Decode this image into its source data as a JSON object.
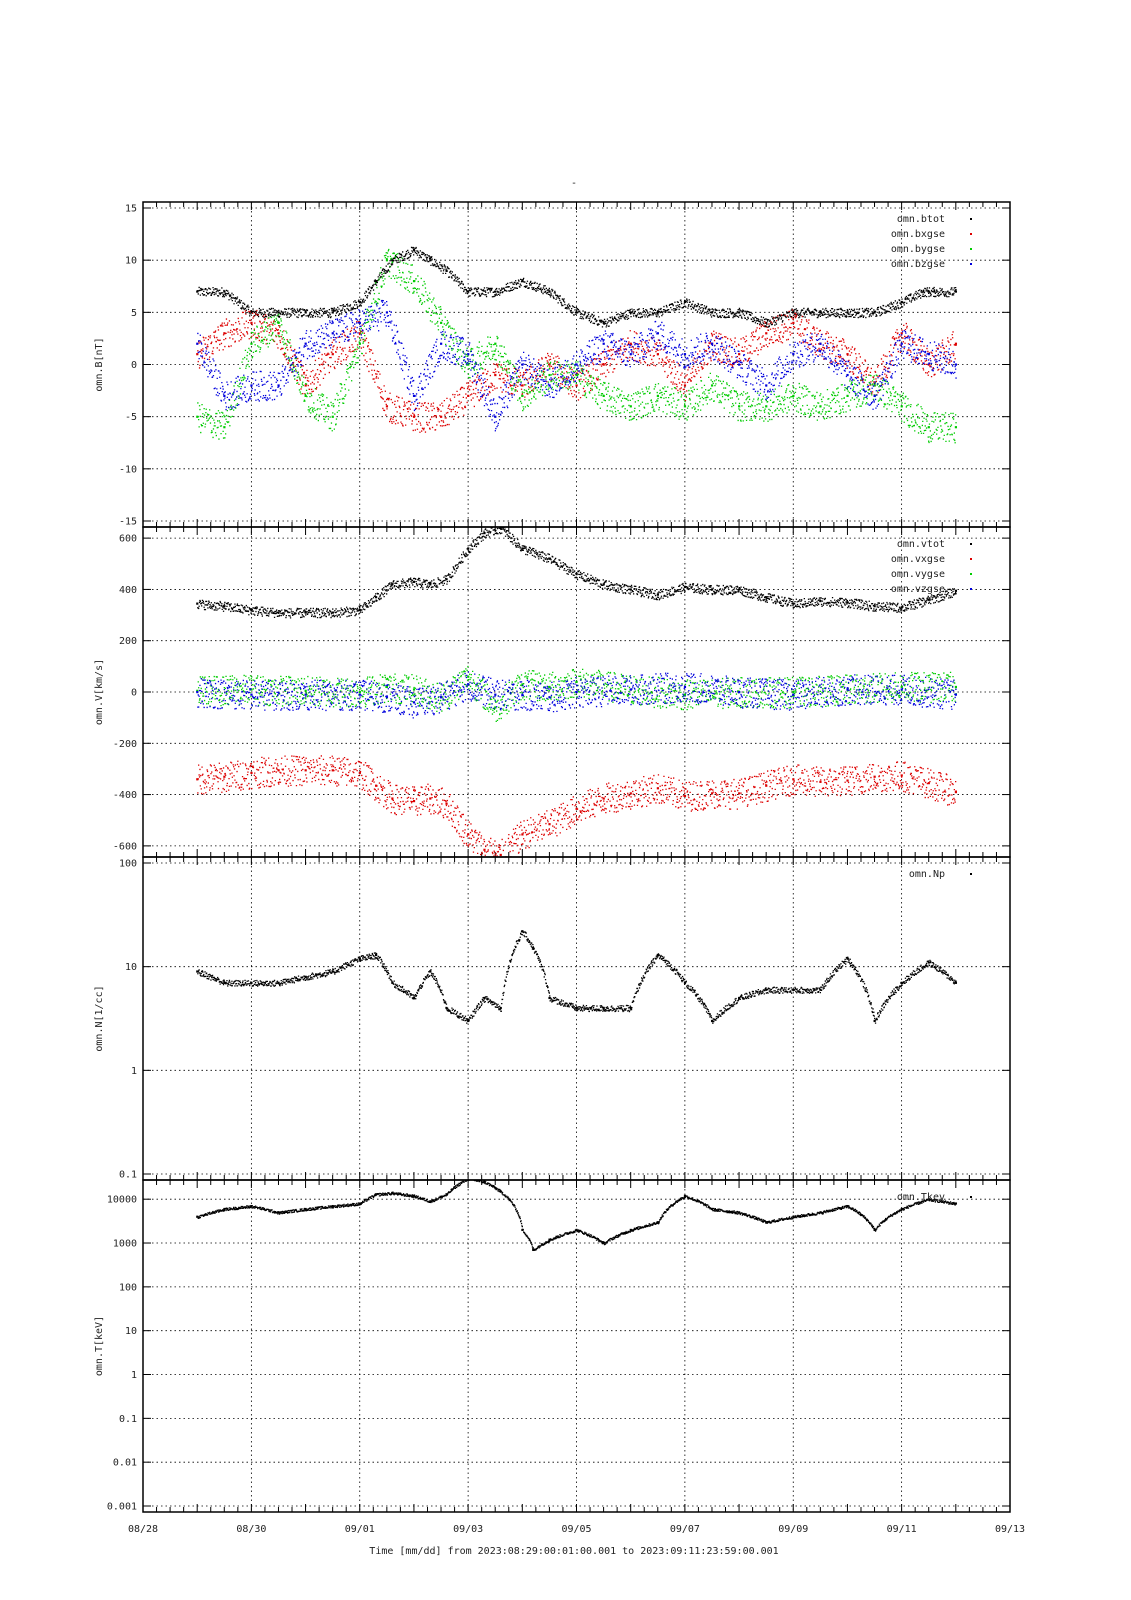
{
  "page": {
    "title": "-"
  },
  "colors": {
    "black": "#000000",
    "red": "#dd0000",
    "green": "#00cc00",
    "blue": "#0000dd"
  },
  "time_axis": {
    "ticks": [
      "08/28",
      "08/30",
      "09/01",
      "09/03",
      "09/05",
      "09/07",
      "09/09",
      "09/11",
      "09/13"
    ],
    "start_day": "08/28",
    "end_day": "09/13",
    "label": "Time [mm/dd]  from 2023:08:29:00:01:00.001  to  2023:09:11:23:59:00.001"
  },
  "chart_data": [
    {
      "type": "scatter",
      "ylabel": "omn.B[nT]",
      "ylim": [
        -15,
        15
      ],
      "yscale": "linear",
      "yticks": [
        -15,
        -10,
        -5,
        0,
        5,
        10,
        15
      ],
      "ytick_labels": [
        "-15",
        "-10",
        "-5",
        "0",
        "5",
        "10",
        "15"
      ],
      "grid": true,
      "legend_position": "top-right",
      "x_unit": "days since 08/28 00:00",
      "series": [
        {
          "name": "omn.btot",
          "color": "black",
          "x": [
            1,
            1.5,
            2,
            2.5,
            3,
            3.5,
            4,
            4.3,
            4.6,
            5,
            5.3,
            5.6,
            6,
            6.5,
            7,
            7.5,
            8,
            8.5,
            9,
            9.5,
            10,
            10.5,
            11,
            11.5,
            12,
            12.5,
            13,
            13.5,
            14,
            14.4,
            14.5,
            14.6,
            15
          ],
          "y": [
            7,
            7,
            5,
            5,
            5,
            5,
            6,
            8,
            10,
            11,
            10,
            9,
            7,
            7,
            8,
            7,
            5,
            4,
            5,
            5,
            6,
            5,
            5,
            4,
            5,
            5,
            5,
            5,
            6,
            7,
            7,
            7,
            7
          ]
        },
        {
          "name": "omn.bxgse",
          "color": "red",
          "x": [
            1,
            1.5,
            2,
            2.5,
            3,
            3.5,
            4,
            4.5,
            5,
            5.5,
            6,
            6.5,
            7,
            7.5,
            8,
            8.5,
            9,
            9.5,
            10,
            10.5,
            11,
            11.5,
            12,
            12.5,
            13,
            13.5,
            14,
            14.5,
            15
          ],
          "y": [
            1,
            3,
            4,
            3,
            -2,
            1,
            3,
            -4,
            -5,
            -5,
            -3,
            -1,
            -2,
            0,
            -2,
            0,
            2,
            1,
            -2,
            2,
            1,
            3,
            4,
            2,
            1,
            -2,
            3,
            0,
            2
          ]
        },
        {
          "name": "omn.bygse",
          "color": "green",
          "x": [
            1,
            1.5,
            2,
            2.5,
            3,
            3.5,
            4,
            4.5,
            5,
            5.5,
            6,
            6.5,
            7,
            7.5,
            8,
            8.5,
            9,
            9.5,
            10,
            10.5,
            11,
            11.5,
            12,
            12.5,
            13,
            13.5,
            14,
            14.5,
            15
          ],
          "y": [
            -5,
            -6,
            2,
            4,
            -3,
            -5,
            2,
            10,
            8,
            4,
            0,
            2,
            -3,
            -1,
            -1,
            -3,
            -4,
            -3,
            -4,
            -2,
            -4,
            -4,
            -3,
            -4,
            -3,
            -2,
            -4,
            -6,
            -6
          ]
        },
        {
          "name": "omn.bzgse",
          "color": "blue",
          "x": [
            1,
            1.5,
            2,
            2.5,
            3,
            3.5,
            4,
            4.5,
            5,
            5.5,
            6,
            6.5,
            7,
            7.5,
            8,
            8.5,
            9,
            9.5,
            10,
            10.5,
            11,
            11.5,
            12,
            12.5,
            13,
            13.5,
            14,
            14.5,
            15
          ],
          "y": [
            2,
            -3,
            -2,
            -2,
            2,
            3,
            4,
            5,
            -3,
            2,
            1,
            -5,
            0,
            -2,
            0,
            2,
            1,
            3,
            1,
            2,
            0,
            -2,
            1,
            2,
            -1,
            -3,
            2,
            1,
            0
          ]
        }
      ]
    },
    {
      "type": "scatter",
      "ylabel": "omn.V[km/s]",
      "ylim": [
        -620,
        620
      ],
      "yscale": "linear",
      "yticks": [
        -600,
        -400,
        -200,
        0,
        200,
        400,
        600
      ],
      "ytick_labels": [
        "-600",
        "-400",
        "-200",
        "0",
        "200",
        "400",
        "600"
      ],
      "grid": true,
      "legend_position": "top-right",
      "x_unit": "days since 08/28 00:00",
      "series": [
        {
          "name": "omn.vtot",
          "color": "black",
          "x": [
            1,
            1.5,
            2,
            2.5,
            3,
            3.5,
            4,
            4.3,
            4.6,
            5,
            5.3,
            5.6,
            6,
            6.3,
            6.6,
            7,
            7.5,
            8,
            8.5,
            9,
            9.5,
            10,
            10.5,
            11,
            11.5,
            12,
            12.5,
            13,
            13.5,
            14,
            14.5,
            15
          ],
          "y": [
            345,
            335,
            320,
            310,
            310,
            310,
            320,
            370,
            420,
            430,
            420,
            440,
            560,
            620,
            640,
            560,
            520,
            460,
            420,
            400,
            380,
            410,
            400,
            400,
            370,
            345,
            355,
            350,
            335,
            330,
            360,
            395
          ]
        },
        {
          "name": "omn.vxgse",
          "color": "red",
          "x": [
            1,
            1.5,
            2,
            2.5,
            3,
            3.5,
            4,
            4.3,
            4.6,
            5,
            5.3,
            5.6,
            6,
            6.3,
            6.6,
            7,
            7.5,
            8,
            8.5,
            9,
            9.5,
            10,
            10.5,
            11,
            11.5,
            12,
            12.5,
            13,
            13.5,
            14,
            14.5,
            15
          ],
          "y": [
            -340,
            -330,
            -315,
            -305,
            -305,
            -305,
            -315,
            -365,
            -415,
            -425,
            -415,
            -435,
            -555,
            -615,
            -635,
            -555,
            -515,
            -455,
            -415,
            -395,
            -375,
            -405,
            -395,
            -395,
            -365,
            -340,
            -350,
            -345,
            -330,
            -325,
            -355,
            -390
          ]
        },
        {
          "name": "omn.vygse",
          "color": "green",
          "x": [
            1,
            2,
            3,
            4,
            4.5,
            5,
            5.5,
            6,
            6.5,
            7,
            7.5,
            8,
            9,
            10,
            11,
            12,
            13,
            14,
            15
          ],
          "y": [
            5,
            10,
            5,
            0,
            20,
            10,
            -20,
            60,
            -60,
            30,
            20,
            40,
            10,
            -10,
            0,
            0,
            10,
            20,
            20
          ]
        },
        {
          "name": "omn.vzgse",
          "color": "blue",
          "x": [
            1,
            2,
            3,
            4,
            4.5,
            5,
            5.5,
            6,
            6.5,
            7,
            7.5,
            8,
            9,
            10,
            11,
            12,
            13,
            14,
            15
          ],
          "y": [
            0,
            -10,
            -10,
            -10,
            -20,
            -40,
            -20,
            30,
            -10,
            -10,
            -20,
            0,
            10,
            20,
            0,
            -10,
            10,
            10,
            -10
          ]
        }
      ]
    },
    {
      "type": "scatter",
      "ylabel": "omn.N[1/cc]",
      "ylim": [
        0.1,
        100
      ],
      "yscale": "log",
      "yticks": [
        0.1,
        1,
        10,
        100
      ],
      "ytick_labels": [
        "0.1",
        "1",
        "10",
        "100"
      ],
      "grid": true,
      "legend_position": "top-right",
      "x_unit": "days since 08/28 00:00",
      "series": [
        {
          "name": "omn.Np",
          "color": "black",
          "x": [
            1,
            1.5,
            2,
            2.5,
            3,
            3.5,
            4,
            4.3,
            4.6,
            5,
            5.3,
            5.6,
            6,
            6.3,
            6.6,
            7,
            7.2,
            7.5,
            8,
            8.5,
            9,
            9.5,
            10,
            10.5,
            11,
            11.5,
            12,
            12.5,
            13,
            13.5,
            14,
            14.5,
            15
          ],
          "y": [
            9,
            7,
            7,
            7,
            8,
            9,
            12,
            13,
            7,
            5,
            9,
            4,
            3,
            5,
            4,
            22,
            15,
            5,
            4,
            4,
            4,
            13,
            7,
            3,
            5,
            6,
            6,
            6,
            12,
            3,
            7,
            11,
            7
          ]
        }
      ]
    },
    {
      "type": "scatter",
      "ylabel": "omn.T[keV]",
      "ylim": [
        0.001,
        20000
      ],
      "yscale": "log",
      "yticks": [
        0.001,
        0.01,
        0.1,
        1,
        10,
        100,
        1000,
        10000
      ],
      "ytick_labels": [
        "0.001",
        "0.01",
        "0.1",
        "1",
        "10",
        "100",
        "1000",
        "10000"
      ],
      "grid": true,
      "legend_position": "top-right",
      "x_unit": "days since 08/28 00:00",
      "series": [
        {
          "name": "omn.Tkev",
          "color": "black",
          "x": [
            1,
            1.5,
            2,
            2.5,
            3,
            3.5,
            4,
            4.3,
            4.6,
            5,
            5.3,
            5.6,
            6,
            6.3,
            6.6,
            7,
            7.2,
            7.5,
            8,
            8.5,
            9,
            9.5,
            10,
            10.5,
            11,
            11.5,
            12,
            12.5,
            13,
            13.5,
            14,
            14.5,
            15
          ],
          "y": [
            4000,
            6000,
            7000,
            5000,
            6000,
            7000,
            8000,
            13000,
            14000,
            12000,
            9000,
            13000,
            30000,
            25000,
            15000,
            2000,
            700,
            1200,
            2000,
            1000,
            2000,
            3000,
            12000,
            6000,
            5000,
            3000,
            4000,
            5000,
            7000,
            2000,
            6000,
            10000,
            8000
          ]
        }
      ]
    }
  ]
}
